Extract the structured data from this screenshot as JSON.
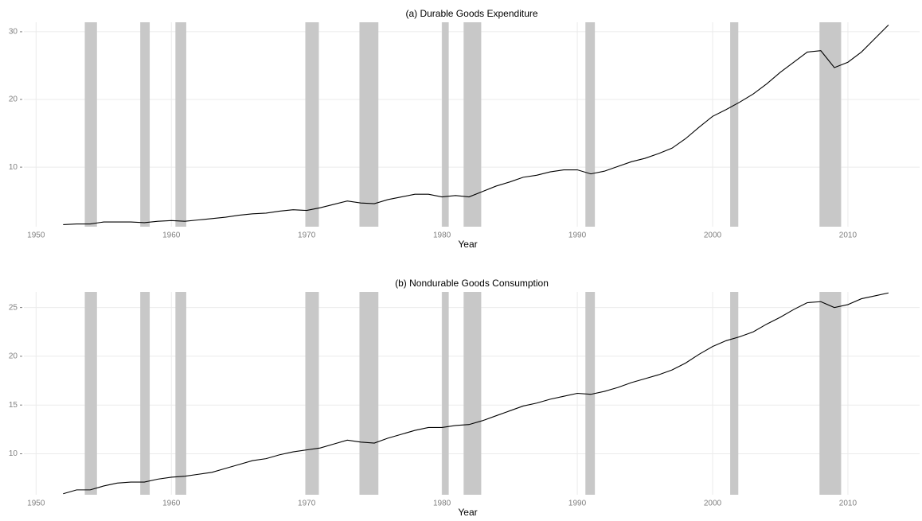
{
  "chart_data": [
    {
      "type": "line",
      "title": "(a) Durable Goods Expenditure",
      "x_label": "Year",
      "x": [
        1952,
        1953,
        1954,
        1955,
        1956,
        1957,
        1958,
        1959,
        1960,
        1961,
        1962,
        1963,
        1964,
        1965,
        1966,
        1967,
        1968,
        1969,
        1970,
        1971,
        1972,
        1973,
        1974,
        1975,
        1976,
        1977,
        1978,
        1979,
        1980,
        1981,
        1982,
        1983,
        1984,
        1985,
        1986,
        1987,
        1988,
        1989,
        1990,
        1991,
        1992,
        1993,
        1994,
        1995,
        1996,
        1997,
        1998,
        1999,
        2000,
        2001,
        2002,
        2003,
        2004,
        2005,
        2006,
        2007,
        2008,
        2009,
        2010,
        2011,
        2012,
        2013
      ],
      "values": [
        1.5,
        1.6,
        1.6,
        1.9,
        1.9,
        1.9,
        1.8,
        2.0,
        2.1,
        2.0,
        2.2,
        2.4,
        2.6,
        2.9,
        3.1,
        3.2,
        3.5,
        3.7,
        3.6,
        4.0,
        4.5,
        5.0,
        4.7,
        4.6,
        5.2,
        5.6,
        6.0,
        6.0,
        5.6,
        5.8,
        5.6,
        6.4,
        7.2,
        7.8,
        8.5,
        8.8,
        9.3,
        9.6,
        9.6,
        9.0,
        9.4,
        10.1,
        10.8,
        11.3,
        12.0,
        12.8,
        14.2,
        15.9,
        17.5,
        18.5,
        19.6,
        20.8,
        22.3,
        24.0,
        25.5,
        27.0,
        27.2,
        24.7,
        25.5,
        27.0,
        29.0,
        31.0
      ],
      "color": "#000000",
      "recessions": [
        [
          1953.6,
          1954.5
        ],
        [
          1957.7,
          1958.4
        ],
        [
          1960.3,
          1961.1
        ],
        [
          1969.9,
          1970.9
        ],
        [
          1973.9,
          1975.3
        ],
        [
          1980.0,
          1980.5
        ],
        [
          1981.6,
          1982.9
        ],
        [
          1990.6,
          1991.3
        ],
        [
          2001.3,
          2001.9
        ],
        [
          2007.9,
          2009.5
        ]
      ],
      "recession_color": "#c8c8c8",
      "xlim": [
        1949.1,
        2015.3
      ],
      "xticks": [
        1950,
        1960,
        1970,
        1980,
        1990,
        2000,
        2010
      ],
      "ylim": [
        1.2,
        31.4
      ],
      "yticks": [
        10,
        20,
        30
      ],
      "grid": true
    },
    {
      "type": "line",
      "title": "(b) Nondurable Goods Consumption",
      "x_label": "Year",
      "x": [
        1952,
        1953,
        1954,
        1955,
        1956,
        1957,
        1958,
        1959,
        1960,
        1961,
        1962,
        1963,
        1964,
        1965,
        1966,
        1967,
        1968,
        1969,
        1970,
        1971,
        1972,
        1973,
        1974,
        1975,
        1976,
        1977,
        1978,
        1979,
        1980,
        1981,
        1982,
        1983,
        1984,
        1985,
        1986,
        1987,
        1988,
        1989,
        1990,
        1991,
        1992,
        1993,
        1994,
        1995,
        1996,
        1997,
        1998,
        1999,
        2000,
        2001,
        2002,
        2003,
        2004,
        2005,
        2006,
        2007,
        2008,
        2009,
        2010,
        2011,
        2012,
        2013
      ],
      "values": [
        5.9,
        6.3,
        6.3,
        6.7,
        7.0,
        7.1,
        7.1,
        7.4,
        7.6,
        7.7,
        7.9,
        8.1,
        8.5,
        8.9,
        9.3,
        9.5,
        9.9,
        10.2,
        10.4,
        10.6,
        11.0,
        11.4,
        11.2,
        11.1,
        11.6,
        12.0,
        12.4,
        12.7,
        12.7,
        12.9,
        13.0,
        13.4,
        13.9,
        14.4,
        14.9,
        15.2,
        15.6,
        15.9,
        16.2,
        16.1,
        16.4,
        16.8,
        17.3,
        17.7,
        18.1,
        18.6,
        19.3,
        20.2,
        21.0,
        21.6,
        22.0,
        22.5,
        23.3,
        24.0,
        24.8,
        25.5,
        25.6,
        25.0,
        25.3,
        25.9,
        26.2,
        26.5
      ],
      "color": "#000000",
      "recessions": [
        [
          1953.6,
          1954.5
        ],
        [
          1957.7,
          1958.4
        ],
        [
          1960.3,
          1961.1
        ],
        [
          1969.9,
          1970.9
        ],
        [
          1973.9,
          1975.3
        ],
        [
          1980.0,
          1980.5
        ],
        [
          1981.6,
          1982.9
        ],
        [
          1990.6,
          1991.3
        ],
        [
          2001.3,
          2001.9
        ],
        [
          2007.9,
          2009.5
        ]
      ],
      "recession_color": "#c8c8c8",
      "xlim": [
        1949.1,
        2015.3
      ],
      "xticks": [
        1950,
        1960,
        1970,
        1980,
        1990,
        2000,
        2010
      ],
      "ylim": [
        5.8,
        26.6
      ],
      "yticks": [
        10,
        15,
        20,
        25
      ],
      "grid": true
    }
  ]
}
